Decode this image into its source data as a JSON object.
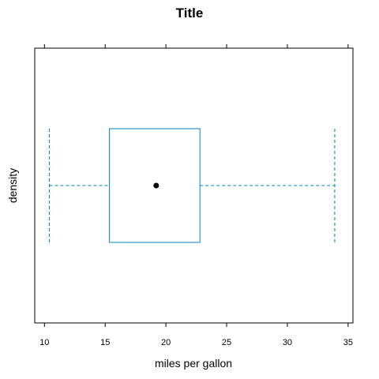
{
  "chart_data": {
    "type": "boxplot",
    "title": "Title",
    "xlabel": "miles per gallon",
    "ylabel": "density",
    "xlim": [
      9.2,
      35.4
    ],
    "x_ticks": [
      10,
      15,
      20,
      25,
      30,
      35
    ],
    "x_tick_labels": [
      "10",
      "15",
      "20",
      "25",
      "30",
      "35"
    ],
    "box": {
      "min": 10.4,
      "q1": 15.35,
      "median": 19.2,
      "q3": 22.8,
      "max": 33.9
    },
    "grid": false,
    "colors": {
      "box": "#0080C0",
      "whisker": "#0080C0",
      "median_dot": "#000000",
      "frame": "#000000"
    }
  }
}
